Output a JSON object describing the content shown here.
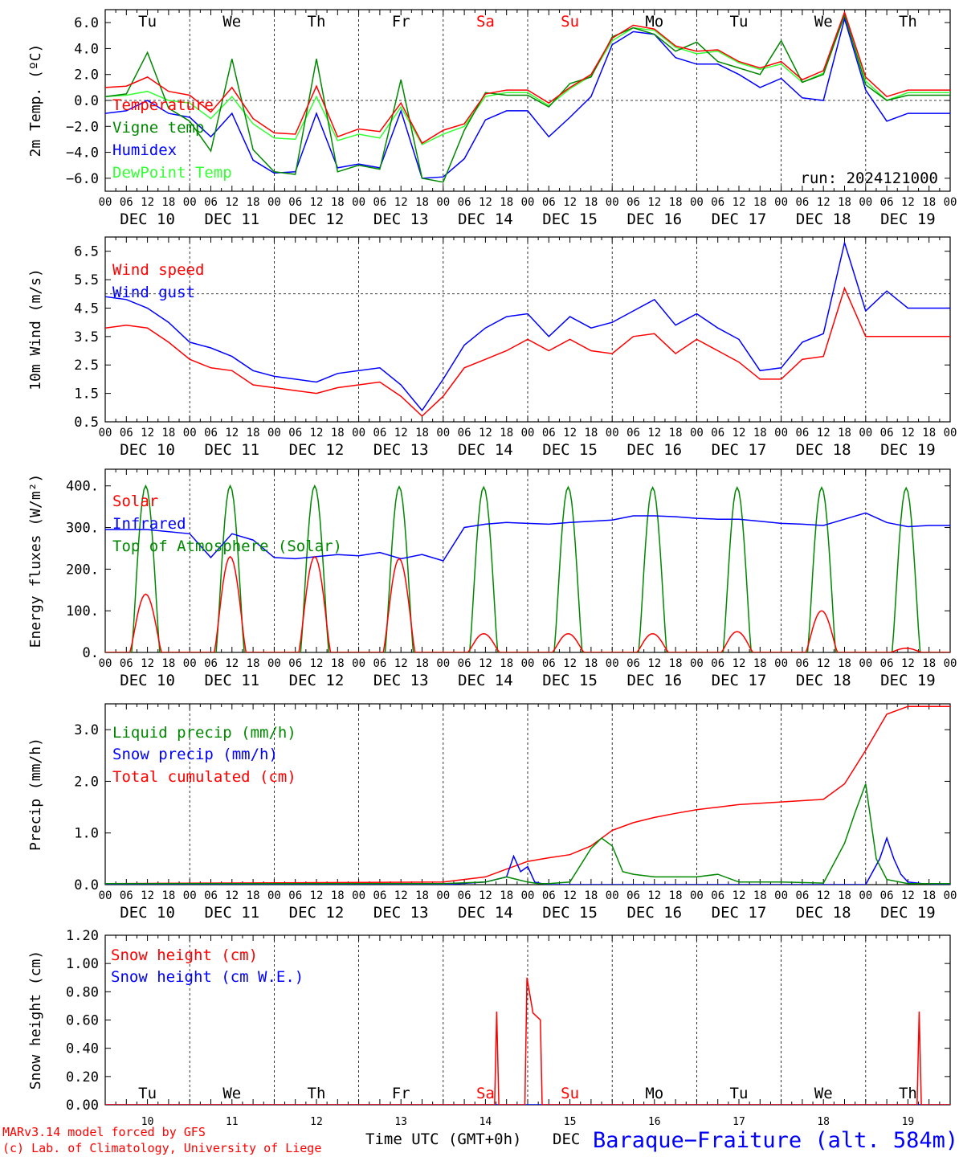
{
  "run_label": "run: 2024121000",
  "location": "Baraque−Fraiture (alt. 584m)",
  "credits": [
    "MARv3.14 model forced by GFS",
    "(c) Lab. of Climatology, University of Liege"
  ],
  "bottom_axis_label": "Time UTC (GMT+0h)",
  "bottom_month": "DEC",
  "colors": {
    "red": "#ff0000",
    "green": "#008800",
    "blue": "#0000ff",
    "lightgreen": "#33ff33"
  },
  "days": {
    "weekdays": [
      "Tu",
      "We",
      "Th",
      "Fr",
      "Sa",
      "Su",
      "Mo",
      "Tu",
      "We",
      "Th"
    ],
    "weekday_colors": [
      "black",
      "black",
      "black",
      "black",
      "red",
      "red",
      "black",
      "black",
      "black",
      "black"
    ],
    "dates": [
      "DEC 10",
      "DEC 11",
      "DEC 12",
      "DEC 13",
      "DEC 14",
      "DEC 15",
      "DEC 16",
      "DEC 17",
      "DEC 18",
      "DEC 19"
    ],
    "day_numbers": [
      "10",
      "11",
      "12",
      "13",
      "14",
      "15",
      "16",
      "17",
      "18",
      "19"
    ],
    "hour_labels": [
      "00",
      "06",
      "12",
      "18"
    ],
    "final_hour_label": "00"
  },
  "chart_data": [
    {
      "type": "line",
      "ylabel": "2m Temp. (ºC)",
      "ylim": [
        -7,
        7
      ],
      "yticks": [
        -6.0,
        -4.0,
        -2.0,
        0.0,
        2.0,
        4.0,
        6.0
      ],
      "ytick_labels": [
        "−6.0",
        "−4.0",
        "−2.0",
        "0.0",
        "2.0",
        "4.0",
        "6.0"
      ],
      "reference_line": 0,
      "x_unit": "hours since DEC 10 00 UTC",
      "series": [
        {
          "name": "Temperature",
          "color": "#ff0000",
          "x": [
            0,
            6,
            12,
            18,
            24,
            30,
            36,
            42,
            48,
            54,
            60,
            66,
            72,
            78,
            84,
            90,
            96,
            102,
            108,
            114,
            120,
            126,
            132,
            138,
            144,
            150,
            156,
            162,
            168,
            174,
            180,
            186,
            192,
            198,
            204,
            210,
            216,
            222,
            228,
            234,
            240
          ],
          "values": [
            1.0,
            1.1,
            1.8,
            0.7,
            0.4,
            -0.9,
            1.0,
            -1.4,
            -2.5,
            -2.6,
            1.1,
            -2.8,
            -2.2,
            -2.4,
            -0.2,
            -3.3,
            -2.3,
            -1.8,
            0.5,
            0.8,
            0.8,
            -0.2,
            1.0,
            2.0,
            4.8,
            5.8,
            5.5,
            4.2,
            3.8,
            3.9,
            3.0,
            2.5,
            3.0,
            1.6,
            2.3,
            6.8,
            1.8,
            0.3,
            0.8,
            0.8,
            0.8
          ]
        },
        {
          "name": "Vigne temp",
          "color": "#008800",
          "x": [
            0,
            6,
            12,
            18,
            24,
            30,
            36,
            42,
            48,
            54,
            60,
            66,
            72,
            78,
            84,
            90,
            96,
            102,
            108,
            114,
            120,
            126,
            132,
            138,
            144,
            150,
            156,
            162,
            168,
            174,
            180,
            186,
            192,
            198,
            204,
            210,
            216,
            222,
            228,
            234,
            240
          ],
          "values": [
            0.3,
            0.5,
            3.7,
            -0.6,
            -1.6,
            -3.9,
            3.2,
            -3.8,
            -5.5,
            -5.7,
            3.2,
            -5.5,
            -5.0,
            -5.3,
            1.6,
            -6.0,
            -6.3,
            -2.3,
            0.6,
            0.4,
            0.4,
            -0.5,
            1.3,
            1.8,
            4.9,
            5.6,
            5.1,
            3.8,
            4.5,
            3.0,
            2.5,
            2.0,
            4.6,
            1.4,
            2.0,
            6.6,
            1.2,
            0.0,
            0.4,
            0.4,
            0.4
          ]
        },
        {
          "name": "Humidex",
          "color": "#0000ff",
          "x": [
            0,
            6,
            12,
            18,
            24,
            30,
            36,
            42,
            48,
            54,
            60,
            66,
            72,
            78,
            84,
            90,
            96,
            102,
            108,
            114,
            120,
            126,
            132,
            138,
            144,
            150,
            156,
            162,
            168,
            174,
            180,
            186,
            192,
            198,
            204,
            210,
            216,
            222,
            228,
            234,
            240
          ],
          "values": [
            -1.0,
            -0.8,
            0.0,
            -1.0,
            -1.3,
            -2.8,
            -1.0,
            -4.6,
            -5.6,
            -5.5,
            -1.0,
            -5.2,
            -4.9,
            -5.2,
            -0.8,
            -6.0,
            -5.9,
            -4.5,
            -1.5,
            -0.8,
            -0.8,
            -2.8,
            -1.3,
            0.3,
            4.3,
            5.3,
            5.1,
            3.3,
            2.8,
            2.8,
            2.0,
            1.0,
            1.7,
            0.2,
            0.0,
            6.3,
            0.8,
            -1.6,
            -1.0,
            -1.0,
            -1.0
          ]
        },
        {
          "name": "DewPoint Temp",
          "color": "#33ff33",
          "x": [
            0,
            6,
            12,
            18,
            24,
            30,
            36,
            42,
            48,
            54,
            60,
            66,
            72,
            78,
            84,
            90,
            96,
            102,
            108,
            114,
            120,
            126,
            132,
            138,
            144,
            150,
            156,
            162,
            168,
            174,
            180,
            186,
            192,
            198,
            204,
            210,
            216,
            222,
            228,
            234,
            240
          ],
          "values": [
            0.3,
            0.4,
            0.7,
            0.0,
            -0.2,
            -1.4,
            0.3,
            -1.8,
            -2.9,
            -3.0,
            0.3,
            -3.1,
            -2.6,
            -2.9,
            -0.5,
            -3.4,
            -2.6,
            -2.0,
            0.3,
            0.6,
            0.6,
            -0.4,
            0.9,
            1.9,
            4.6,
            5.6,
            5.4,
            4.1,
            3.6,
            3.8,
            2.9,
            2.4,
            2.8,
            1.4,
            2.1,
            6.5,
            1.5,
            0.0,
            0.6,
            0.6,
            0.6
          ]
        }
      ]
    },
    {
      "type": "line",
      "ylabel": "10m Wind (m/s)",
      "ylim": [
        0.5,
        7.0
      ],
      "yticks": [
        0.5,
        1.5,
        2.5,
        3.5,
        4.5,
        5.5,
        6.5
      ],
      "ytick_labels": [
        "0.5",
        "1.5",
        "2.5",
        "3.5",
        "4.5",
        "5.5",
        "6.5"
      ],
      "reference_line": 5.0,
      "x_unit": "hours since DEC 10 00 UTC",
      "series": [
        {
          "name": "Wind speed",
          "color": "#ff0000",
          "x": [
            0,
            6,
            12,
            18,
            24,
            30,
            36,
            42,
            48,
            54,
            60,
            66,
            72,
            78,
            84,
            90,
            96,
            102,
            108,
            114,
            120,
            126,
            132,
            138,
            144,
            150,
            156,
            162,
            168,
            174,
            180,
            186,
            192,
            198,
            204,
            210,
            216,
            222,
            228,
            234,
            240
          ],
          "values": [
            3.8,
            3.9,
            3.8,
            3.3,
            2.7,
            2.4,
            2.3,
            1.8,
            1.7,
            1.6,
            1.5,
            1.7,
            1.8,
            1.9,
            1.4,
            0.7,
            1.4,
            2.4,
            2.7,
            3.0,
            3.4,
            3.0,
            3.4,
            3.0,
            2.9,
            3.5,
            3.6,
            2.9,
            3.4,
            3.0,
            2.6,
            2.0,
            2.0,
            2.7,
            2.8,
            5.2,
            3.5,
            3.5,
            3.5,
            3.5,
            3.5
          ]
        },
        {
          "name": "Wind gust",
          "color": "#0000ff",
          "x": [
            0,
            6,
            12,
            18,
            24,
            30,
            36,
            42,
            48,
            54,
            60,
            66,
            72,
            78,
            84,
            90,
            96,
            102,
            108,
            114,
            120,
            126,
            132,
            138,
            144,
            150,
            156,
            162,
            168,
            174,
            180,
            186,
            192,
            198,
            204,
            210,
            216,
            222,
            228,
            234,
            240
          ],
          "values": [
            4.9,
            4.8,
            4.5,
            4.0,
            3.3,
            3.1,
            2.8,
            2.3,
            2.1,
            2.0,
            1.9,
            2.2,
            2.3,
            2.4,
            1.8,
            0.9,
            2.0,
            3.2,
            3.8,
            4.2,
            4.3,
            3.5,
            4.2,
            3.8,
            4.0,
            4.4,
            4.8,
            3.9,
            4.3,
            3.8,
            3.4,
            2.3,
            2.4,
            3.3,
            3.6,
            6.8,
            4.4,
            5.1,
            4.5,
            4.5,
            4.5
          ]
        }
      ]
    },
    {
      "type": "line",
      "ylabel": "Energy fluxes (W/m²)",
      "ylim": [
        0,
        440
      ],
      "yticks": [
        0,
        100,
        200,
        300,
        400
      ],
      "ytick_labels": [
        "0.",
        "100.",
        "200.",
        "300.",
        "400."
      ],
      "x_unit": "hours since DEC 10 00 UTC",
      "series": [
        {
          "name": "Solar",
          "color": "#ff0000",
          "daily_peak_hour": 11.5,
          "half_width_hours": 4.5,
          "daily_peaks": [
            140,
            230,
            230,
            225,
            45,
            45,
            45,
            50,
            100,
            10
          ]
        },
        {
          "name": "Infrared",
          "color": "#0000ff",
          "x": [
            0,
            12,
            24,
            30,
            36,
            42,
            48,
            54,
            60,
            66,
            72,
            78,
            84,
            90,
            96,
            102,
            108,
            114,
            120,
            126,
            132,
            138,
            144,
            150,
            156,
            162,
            168,
            174,
            180,
            186,
            192,
            198,
            204,
            210,
            216,
            222,
            228,
            234,
            240
          ],
          "values": [
            295,
            295,
            285,
            228,
            285,
            270,
            228,
            225,
            230,
            235,
            232,
            240,
            225,
            235,
            220,
            300,
            308,
            312,
            310,
            308,
            312,
            315,
            318,
            328,
            328,
            326,
            322,
            320,
            320,
            315,
            310,
            308,
            305,
            320,
            335,
            312,
            302,
            305,
            305
          ]
        },
        {
          "name": "Top of Atmosphere (Solar)",
          "color": "#008800",
          "daily_peak_hour": 11.5,
          "half_width_hours": 4.0,
          "daily_peaks": [
            400,
            400,
            400,
            398,
            397,
            397,
            396,
            396,
            396,
            395
          ]
        }
      ]
    },
    {
      "type": "line",
      "ylabel": "Precip (mm/h)",
      "ylim": [
        0,
        3.5
      ],
      "yticks": [
        0.0,
        1.0,
        2.0,
        3.0
      ],
      "ytick_labels": [
        "0.0",
        "1.0",
        "2.0",
        "3.0"
      ],
      "x_unit": "hours since DEC 10 00 UTC",
      "series": [
        {
          "name": "Liquid precip (mm/h)",
          "color": "#008800",
          "x": [
            0,
            96,
            108,
            114,
            117,
            120,
            123,
            126,
            132,
            138,
            141,
            144,
            147,
            150,
            156,
            162,
            168,
            174,
            180,
            192,
            204,
            210,
            213,
            216,
            219,
            222,
            228,
            234,
            240
          ],
          "values": [
            0.02,
            0.02,
            0.05,
            0.15,
            0.1,
            0.05,
            0.02,
            0.02,
            0.05,
            0.7,
            0.9,
            0.75,
            0.25,
            0.2,
            0.15,
            0.15,
            0.15,
            0.2,
            0.05,
            0.05,
            0.03,
            0.8,
            1.4,
            1.95,
            0.5,
            0.1,
            0.02,
            0.02,
            0.02
          ]
        },
        {
          "name": "Snow precip (mm/h)",
          "color": "#0000ff",
          "x": [
            0,
            96,
            108,
            114,
            116,
            118,
            120,
            122,
            124,
            126,
            132,
            208,
            216,
            220,
            222,
            224,
            226,
            228,
            232,
            240
          ],
          "values": [
            0,
            0,
            0.05,
            0.15,
            0.55,
            0.25,
            0.35,
            0.05,
            0.02,
            0.0,
            0.0,
            0.0,
            0.0,
            0.5,
            0.9,
            0.5,
            0.2,
            0.05,
            0.02,
            0.0
          ]
        },
        {
          "name": "Total cumulated (cm)",
          "color": "#ff0000",
          "x": [
            0,
            96,
            108,
            114,
            120,
            126,
            132,
            138,
            144,
            150,
            156,
            162,
            168,
            174,
            180,
            192,
            204,
            210,
            216,
            222,
            228,
            234,
            240
          ],
          "values": [
            0.02,
            0.05,
            0.15,
            0.3,
            0.45,
            0.52,
            0.58,
            0.75,
            1.05,
            1.2,
            1.3,
            1.38,
            1.45,
            1.5,
            1.55,
            1.6,
            1.65,
            1.95,
            2.6,
            3.3,
            3.45,
            3.45,
            3.45
          ]
        }
      ]
    },
    {
      "type": "line",
      "ylabel": "Snow height (cm)",
      "ylim": [
        0,
        1.2
      ],
      "yticks": [
        0.0,
        0.2,
        0.4,
        0.6,
        0.8,
        1.0,
        1.2
      ],
      "ytick_labels": [
        "0.00",
        "0.20",
        "0.40",
        "0.60",
        "0.80",
        "1.00",
        "1.20"
      ],
      "x_unit": "hours since DEC 10 00 UTC",
      "series": [
        {
          "name": "Snow height (cm)",
          "color": "#ff0000",
          "x": [
            0,
            110.6,
            111.2,
            111.8,
            119.2,
            119.8,
            121.5,
            123.6,
            124.1,
            124.6,
            125.3,
            126.1,
            126.6,
            127.3,
            129.2,
            230.6,
            231.2,
            231.8,
            240
          ],
          "values": [
            0,
            0,
            0.66,
            0,
            0,
            0.9,
            0.65,
            0.6,
            0,
            0,
            0,
            0,
            0,
            0,
            0,
            0,
            0.66,
            0,
            0
          ]
        },
        {
          "name": "Snow height (cm W.E.)",
          "color": "#0000ff",
          "x": [
            0,
            240
          ],
          "values": [
            0,
            0
          ]
        }
      ]
    }
  ]
}
